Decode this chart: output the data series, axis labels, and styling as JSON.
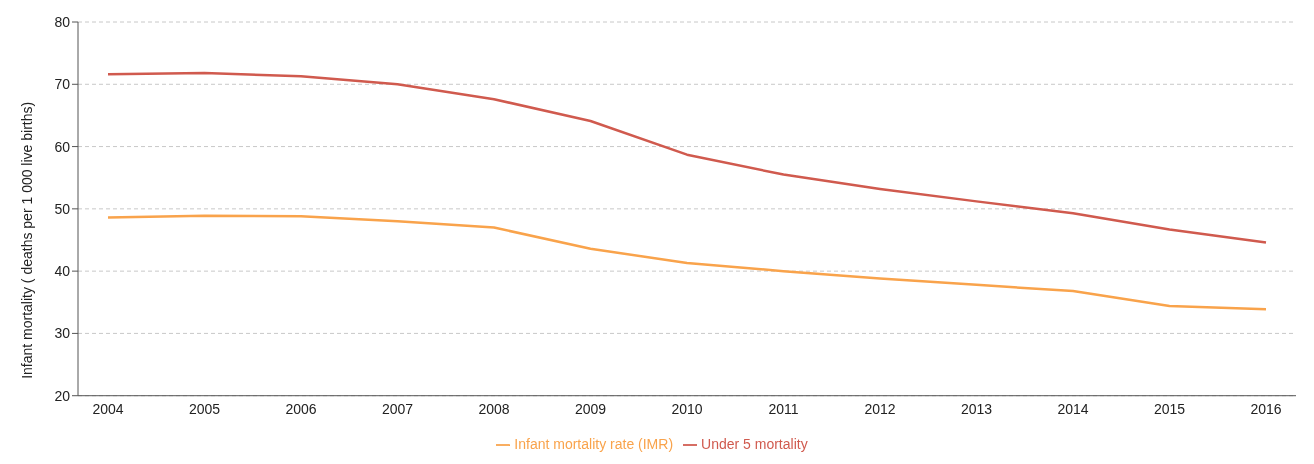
{
  "chart_data": {
    "type": "line",
    "ylabel": "Infant mortality ( deaths per 1 000 live births)",
    "categories": [
      "2004",
      "2005",
      "2006",
      "2007",
      "2008",
      "2009",
      "2010",
      "2011",
      "2012",
      "2013",
      "2014",
      "2015",
      "2016"
    ],
    "series": [
      {
        "name": "Infant mortality rate (IMR)",
        "color": "#f9a34b",
        "values": [
          48.6,
          48.9,
          48.8,
          48.0,
          47.0,
          43.6,
          41.3,
          40.0,
          38.8,
          37.8,
          36.8,
          34.4,
          33.9
        ]
      },
      {
        "name": "Under 5 mortality",
        "color": "#d05a4e",
        "values": [
          71.6,
          71.8,
          71.3,
          70.0,
          67.6,
          64.1,
          58.7,
          55.5,
          53.2,
          51.2,
          49.3,
          46.7,
          44.6
        ]
      }
    ],
    "ylim": [
      20,
      80
    ],
    "yticks": [
      20,
      30,
      40,
      50,
      60,
      70,
      80
    ],
    "grid": "y",
    "legend": "bottom",
    "marker": "none",
    "line_style": "solid"
  }
}
